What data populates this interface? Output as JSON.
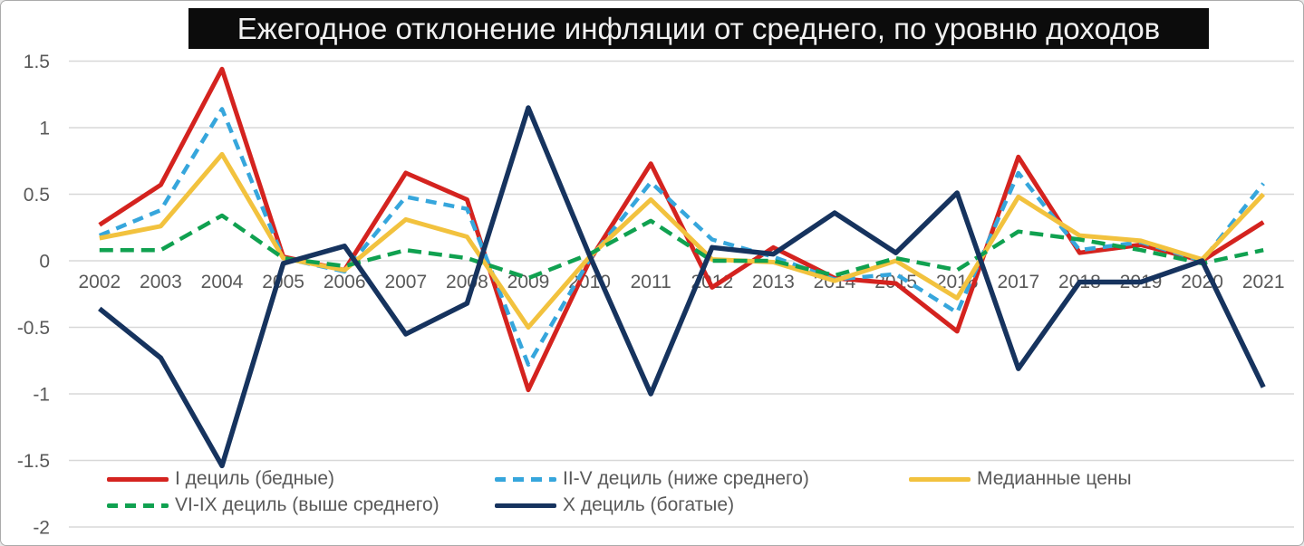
{
  "title": "Ежегодное отклонение инфляции от среднего, по уровню доходов",
  "colors": {
    "title_bg": "#0c0c0c",
    "title_text": "#f1f1f1",
    "axis_text": "#595959",
    "gridline": "#d8d8d8",
    "background": "#ffffff",
    "border": "#ababab"
  },
  "chart_data": {
    "type": "line",
    "title": "Ежегодное отклонение инфляции от среднего, по уровню доходов",
    "x": [
      "2002",
      "2003",
      "2004",
      "2005",
      "2006",
      "2007",
      "2008",
      "2009",
      "2010",
      "2011",
      "2012",
      "2013",
      "2014",
      "2015",
      "2016",
      "2017",
      "2018",
      "2019",
      "2020",
      "2021"
    ],
    "yticks": [
      "1.5",
      "1",
      "0.5",
      "0",
      "-0.5",
      "-1",
      "-1.5",
      "-2"
    ],
    "ylim": [
      -2,
      1.5
    ],
    "grid": true,
    "legend_position": "bottom-inside",
    "series": [
      {
        "name": "I дециль (бедные)",
        "color": "#d4231f",
        "dash": false,
        "values": [
          0.27,
          0.57,
          1.44,
          0.03,
          -0.07,
          0.66,
          0.46,
          -0.97,
          0.0,
          0.73,
          -0.2,
          0.1,
          -0.13,
          -0.17,
          -0.53,
          0.78,
          0.06,
          0.12,
          0.0,
          0.29
        ]
      },
      {
        "name": "II-V дециль (ниже среднего)",
        "color": "#36a6dc",
        "dash": true,
        "values": [
          0.19,
          0.38,
          1.14,
          0.02,
          -0.08,
          0.48,
          0.39,
          -0.78,
          0.01,
          0.59,
          0.16,
          0.03,
          -0.14,
          -0.1,
          -0.39,
          0.66,
          0.08,
          0.14,
          0.0,
          0.58
        ]
      },
      {
        "name": "Медианные цены",
        "color": "#f2c23e",
        "dash": false,
        "values": [
          0.17,
          0.26,
          0.8,
          0.02,
          -0.07,
          0.31,
          0.18,
          -0.5,
          0.03,
          0.46,
          0.01,
          -0.01,
          -0.15,
          0.0,
          -0.28,
          0.48,
          0.19,
          0.15,
          0.01,
          0.5
        ]
      },
      {
        "name": "VI-IX дециль (выше среднего)",
        "color": "#10a150",
        "dash": true,
        "values": [
          0.08,
          0.08,
          0.34,
          0.02,
          -0.04,
          0.08,
          0.02,
          -0.13,
          0.05,
          0.3,
          0.0,
          0.0,
          -0.11,
          0.02,
          -0.07,
          0.22,
          0.16,
          0.08,
          -0.02,
          0.08
        ]
      },
      {
        "name": "X дециль (богатые)",
        "color": "#16335e",
        "dash": false,
        "values": [
          -0.36,
          -0.73,
          -1.54,
          -0.02,
          0.11,
          -0.55,
          -0.32,
          1.15,
          0.04,
          -1.0,
          0.1,
          0.05,
          0.36,
          0.06,
          0.51,
          -0.81,
          -0.16,
          -0.16,
          0.0,
          -0.95
        ]
      }
    ]
  }
}
